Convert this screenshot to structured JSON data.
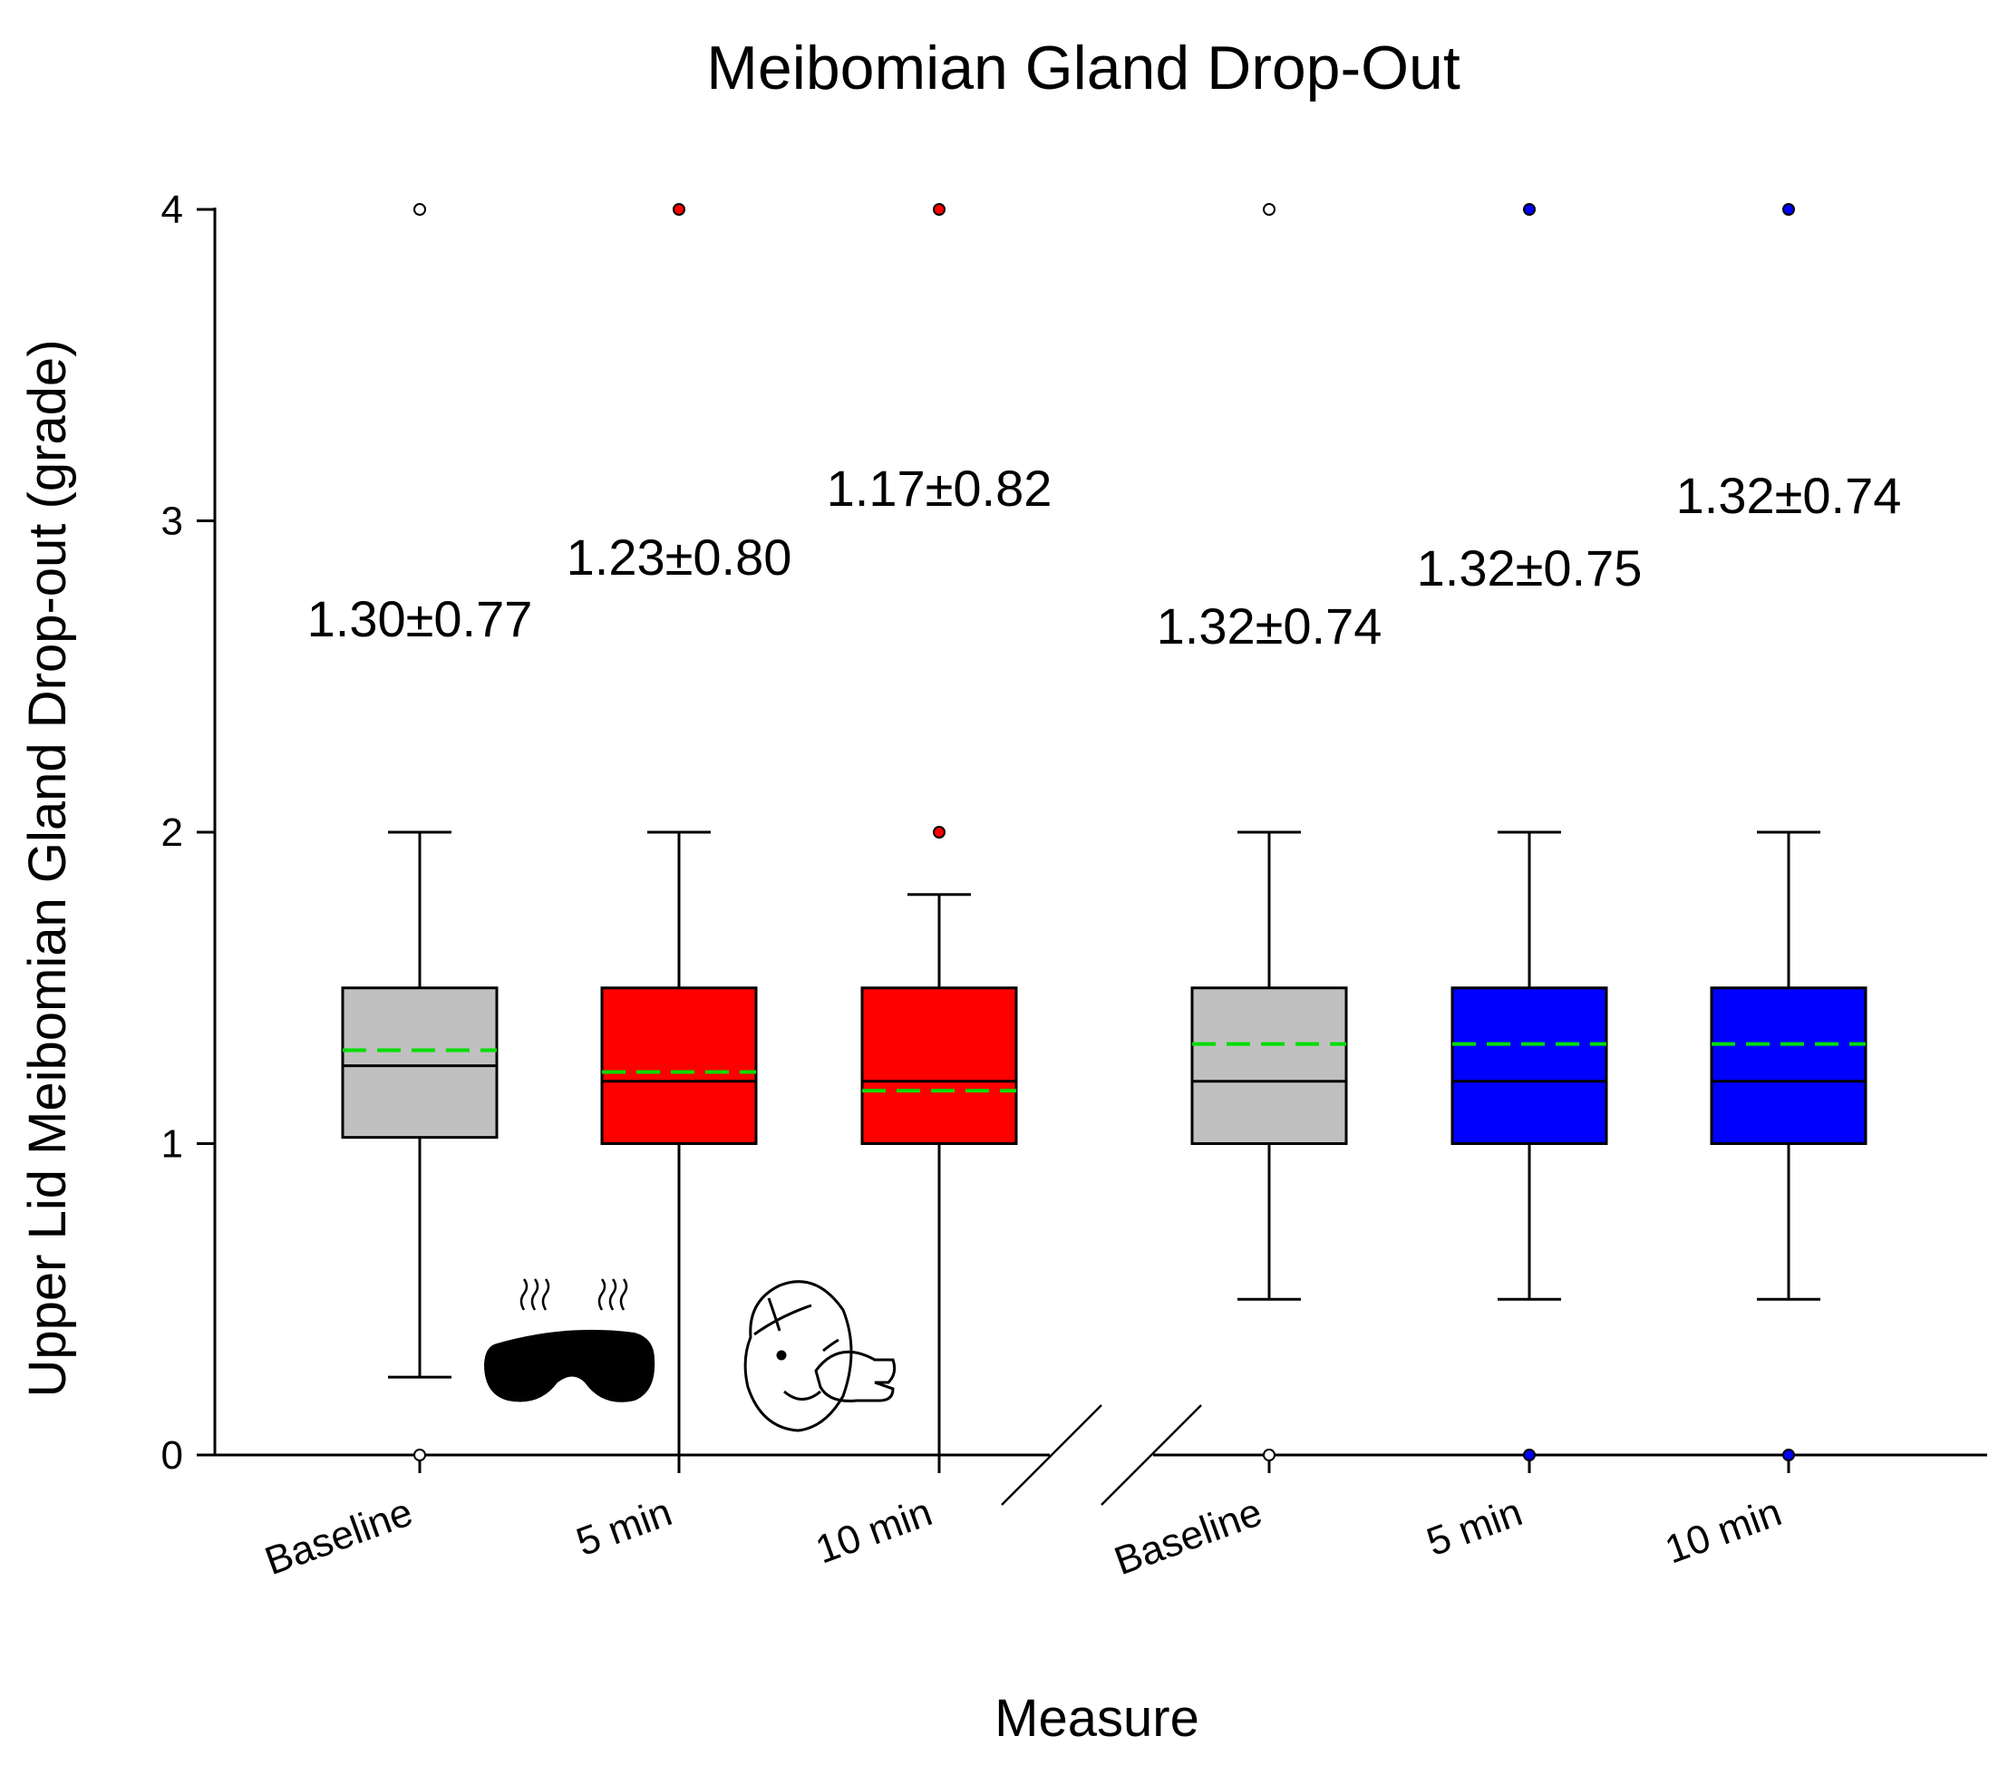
{
  "chart_data": {
    "type": "box",
    "title": "Meibomian Gland Drop-Out",
    "xlabel": "Measure",
    "ylabel": "Upper Lid Meibomian Gland Drop-out (grade)",
    "ylim": [
      0,
      4
    ],
    "yticks": [
      "0",
      "1",
      "2",
      "3",
      "4"
    ],
    "axis_break": true,
    "categories": [
      "Baseline",
      "5 min",
      "10 min",
      "Baseline",
      "5 min",
      "10 min"
    ],
    "boxes": [
      {
        "label": "Baseline",
        "group": 1,
        "color": "#c0c0c0",
        "q1": 1.02,
        "median": 1.25,
        "mean": 1.3,
        "q3": 1.5,
        "whisker_low": 0.25,
        "whisker_high": 2.0,
        "outliers": [
          0,
          4
        ],
        "outlier_color": "#ffffff",
        "annotation": "1.30±0.77"
      },
      {
        "label": "5 min",
        "group": 1,
        "color": "#ff0000",
        "q1": 1.0,
        "median": 1.2,
        "mean": 1.23,
        "q3": 1.5,
        "whisker_low": 0.0,
        "whisker_high": 2.0,
        "outliers": [
          4
        ],
        "outlier_color": "#ff0000",
        "annotation": "1.23±0.80"
      },
      {
        "label": "10 min",
        "group": 1,
        "color": "#ff0000",
        "q1": 1.0,
        "median": 1.2,
        "mean": 1.17,
        "q3": 1.5,
        "whisker_low": 0.0,
        "whisker_high": 1.8,
        "outliers": [
          2,
          4
        ],
        "outlier_color": "#ff0000",
        "annotation": "1.17±0.82"
      },
      {
        "label": "Baseline",
        "group": 2,
        "color": "#c0c0c0",
        "q1": 1.0,
        "median": 1.2,
        "mean": 1.32,
        "q3": 1.5,
        "whisker_low": 0.5,
        "whisker_high": 2.0,
        "outliers": [
          0,
          4
        ],
        "outlier_color": "#ffffff",
        "annotation": "1.32±0.74"
      },
      {
        "label": "5 min",
        "group": 2,
        "color": "#0000ff",
        "q1": 1.0,
        "median": 1.2,
        "mean": 1.32,
        "q3": 1.5,
        "whisker_low": 0.5,
        "whisker_high": 2.0,
        "outliers": [
          0,
          4
        ],
        "outlier_color": "#0000ff",
        "annotation": "1.32±0.75"
      },
      {
        "label": "10 min",
        "group": 2,
        "color": "#0000ff",
        "q1": 1.0,
        "median": 1.2,
        "mean": 1.32,
        "q3": 1.5,
        "whisker_low": 0.5,
        "whisker_high": 2.0,
        "outliers": [
          0,
          4
        ],
        "outlier_color": "#0000ff",
        "annotation": "1.32±0.74"
      }
    ],
    "mean_line_color": "#00dd00",
    "icons": [
      "heated-eye-mask-icon",
      "warm-compress-face-icon"
    ]
  }
}
